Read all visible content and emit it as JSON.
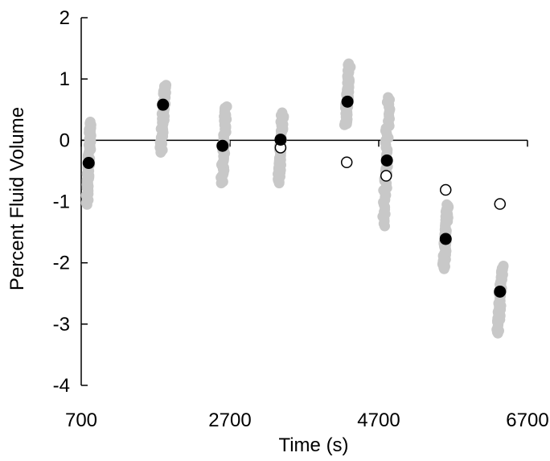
{
  "chart_data": {
    "type": "scatter",
    "title": "",
    "xlabel": "Time (s)",
    "ylabel": "Percent Fluid Volume",
    "xlim": [
      700,
      6700
    ],
    "ylim": [
      -4,
      2
    ],
    "x_ticks": [
      700,
      2700,
      4700,
      6700
    ],
    "y_ticks": [
      -4,
      -3,
      -2,
      -1,
      0,
      1,
      2
    ],
    "grid": false,
    "legend": "none",
    "colors": {
      "individual": "#c8c8c8",
      "mean": "#000000",
      "open": "#ffffff",
      "axis": "#000000"
    },
    "series": [
      {
        "marker": "gray-filled",
        "clusters": [
          {
            "x": 800,
            "x_spread": 45,
            "y_min": -1.05,
            "y_max": 0.3
          },
          {
            "x": 1800,
            "x_spread": 45,
            "y_min": -0.2,
            "y_max": 0.9
          },
          {
            "x": 2620,
            "x_spread": 45,
            "y_min": -0.7,
            "y_max": 0.55
          },
          {
            "x": 3380,
            "x_spread": 45,
            "y_min": -0.7,
            "y_max": 0.45
          },
          {
            "x": 4280,
            "x_spread": 45,
            "y_min": 0.25,
            "y_max": 1.25
          },
          {
            "x": 4800,
            "x_spread": 55,
            "y_min": -1.4,
            "y_max": 0.7
          },
          {
            "x": 5600,
            "x_spread": 45,
            "y_min": -2.1,
            "y_max": -1.05
          },
          {
            "x": 6330,
            "x_spread": 45,
            "y_min": -3.15,
            "y_max": -2.05
          }
        ]
      },
      {
        "marker": "black-filled",
        "points": [
          {
            "x": 800,
            "y": -0.37
          },
          {
            "x": 1800,
            "y": 0.58
          },
          {
            "x": 2600,
            "y": -0.09
          },
          {
            "x": 3380,
            "y": 0.01
          },
          {
            "x": 4280,
            "y": 0.63
          },
          {
            "x": 4810,
            "y": -0.33
          },
          {
            "x": 5600,
            "y": -1.61
          },
          {
            "x": 6330,
            "y": -2.47
          }
        ]
      },
      {
        "marker": "open-circle",
        "points": [
          {
            "x": 3380,
            "y": -0.12
          },
          {
            "x": 4270,
            "y": -0.36
          },
          {
            "x": 4800,
            "y": -0.58
          },
          {
            "x": 5600,
            "y": -0.81
          },
          {
            "x": 6330,
            "y": -1.04
          }
        ]
      }
    ]
  }
}
